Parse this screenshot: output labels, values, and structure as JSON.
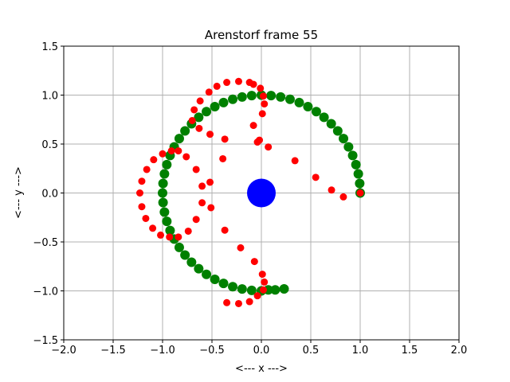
{
  "chart_data": {
    "type": "scatter",
    "title": "Arenstorf frame 55",
    "xlabel": "<---  x  --->",
    "ylabel": "<---  y  --->",
    "xlim": [
      -2.0,
      2.0
    ],
    "ylim": [
      -1.5,
      1.5
    ],
    "xticks": [
      -2.0,
      -1.5,
      -1.0,
      -0.5,
      0.0,
      0.5,
      1.0,
      1.5,
      2.0
    ],
    "yticks": [
      -1.5,
      -1.0,
      -0.5,
      0.0,
      0.5,
      1.0,
      1.5
    ],
    "xtick_labels": [
      "−2.0",
      "−1.5",
      "−1.0",
      "−0.5",
      "0.0",
      "0.5",
      "1.0",
      "1.5",
      "2.0"
    ],
    "ytick_labels": [
      "−1.5",
      "−1.0",
      "−0.5",
      "0.0",
      "0.5",
      "1.0",
      "1.5"
    ],
    "grid": true,
    "series": [
      {
        "role": "moon-orbit",
        "color": "#008000",
        "marker": "large-circle",
        "points": [
          [
            1.0,
            0.0
          ],
          [
            0.995,
            0.098
          ],
          [
            0.981,
            0.195
          ],
          [
            0.957,
            0.29
          ],
          [
            0.924,
            0.383
          ],
          [
            0.882,
            0.471
          ],
          [
            0.831,
            0.556
          ],
          [
            0.773,
            0.634
          ],
          [
            0.707,
            0.707
          ],
          [
            0.634,
            0.773
          ],
          [
            0.556,
            0.831
          ],
          [
            0.471,
            0.882
          ],
          [
            0.383,
            0.924
          ],
          [
            0.29,
            0.957
          ],
          [
            0.195,
            0.981
          ],
          [
            0.098,
            0.995
          ],
          [
            0.0,
            1.0
          ],
          [
            -0.098,
            0.995
          ],
          [
            -0.195,
            0.981
          ],
          [
            -0.29,
            0.957
          ],
          [
            -0.383,
            0.924
          ],
          [
            -0.471,
            0.882
          ],
          [
            -0.556,
            0.831
          ],
          [
            -0.634,
            0.773
          ],
          [
            -0.707,
            0.707
          ],
          [
            -0.773,
            0.634
          ],
          [
            -0.831,
            0.556
          ],
          [
            -0.882,
            0.471
          ],
          [
            -0.924,
            0.383
          ],
          [
            -0.957,
            0.29
          ],
          [
            -0.981,
            0.195
          ],
          [
            -0.995,
            0.098
          ],
          [
            -1.0,
            0.0
          ],
          [
            -0.995,
            -0.098
          ],
          [
            -0.981,
            -0.195
          ],
          [
            -0.957,
            -0.29
          ],
          [
            -0.924,
            -0.383
          ],
          [
            -0.882,
            -0.471
          ],
          [
            -0.831,
            -0.556
          ],
          [
            -0.773,
            -0.634
          ],
          [
            -0.707,
            -0.707
          ],
          [
            -0.634,
            -0.773
          ],
          [
            -0.556,
            -0.831
          ],
          [
            -0.471,
            -0.882
          ],
          [
            -0.383,
            -0.924
          ],
          [
            -0.29,
            -0.957
          ],
          [
            -0.195,
            -0.981
          ],
          [
            -0.098,
            -0.995
          ],
          [
            0.0,
            -1.0
          ],
          [
            0.07,
            -0.99
          ],
          [
            0.14,
            -0.99
          ],
          [
            0.23,
            -0.98
          ]
        ]
      },
      {
        "role": "satellite-orbit",
        "color": "#ff0000",
        "marker": "small-circle",
        "points": [
          [
            1.0,
            0.0
          ],
          [
            0.83,
            -0.04
          ],
          [
            0.71,
            0.03
          ],
          [
            0.55,
            0.16
          ],
          [
            0.34,
            0.33
          ],
          [
            0.07,
            0.47
          ],
          [
            -0.02,
            0.54
          ],
          [
            -0.04,
            0.52
          ],
          [
            -0.08,
            0.69
          ],
          [
            0.01,
            0.81
          ],
          [
            0.03,
            0.91
          ],
          [
            0.02,
            0.99
          ],
          [
            -0.01,
            1.07
          ],
          [
            -0.08,
            1.11
          ],
          [
            -0.12,
            1.13
          ],
          [
            -0.23,
            1.14
          ],
          [
            -0.35,
            1.13
          ],
          [
            -0.45,
            1.09
          ],
          [
            -0.53,
            1.03
          ],
          [
            -0.62,
            0.94
          ],
          [
            -0.68,
            0.85
          ],
          [
            -0.7,
            0.74
          ],
          [
            -0.63,
            0.66
          ],
          [
            -0.52,
            0.6
          ],
          [
            -0.37,
            0.55
          ],
          [
            -0.39,
            0.35
          ],
          [
            -0.66,
            0.24
          ],
          [
            -0.76,
            0.37
          ],
          [
            -0.84,
            0.43
          ],
          [
            -0.91,
            0.43
          ],
          [
            -1.0,
            0.4
          ],
          [
            -1.09,
            0.34
          ],
          [
            -1.16,
            0.24
          ],
          [
            -1.21,
            0.12
          ],
          [
            -1.23,
            0.0
          ],
          [
            -1.21,
            -0.14
          ],
          [
            -1.17,
            -0.26
          ],
          [
            -1.1,
            -0.36
          ],
          [
            -1.02,
            -0.43
          ],
          [
            -0.93,
            -0.45
          ],
          [
            -0.84,
            -0.45
          ],
          [
            -0.74,
            -0.39
          ],
          [
            -0.66,
            -0.27
          ],
          [
            -0.6,
            -0.1
          ],
          [
            -0.52,
            0.11
          ],
          [
            -0.6,
            0.07
          ],
          [
            -0.51,
            -0.15
          ],
          [
            -0.37,
            -0.38
          ],
          [
            -0.21,
            -0.56
          ],
          [
            -0.07,
            -0.7
          ],
          [
            0.01,
            -0.83
          ],
          [
            0.03,
            -0.91
          ],
          [
            0.02,
            -0.99
          ],
          [
            -0.04,
            -1.05
          ],
          [
            -0.12,
            -1.11
          ],
          [
            -0.23,
            -1.13
          ],
          [
            -0.35,
            -1.12
          ]
        ]
      },
      {
        "role": "earth",
        "color": "#0000ff",
        "marker": "big-disc",
        "points": [
          [
            0.0,
            0.0
          ]
        ]
      }
    ]
  }
}
